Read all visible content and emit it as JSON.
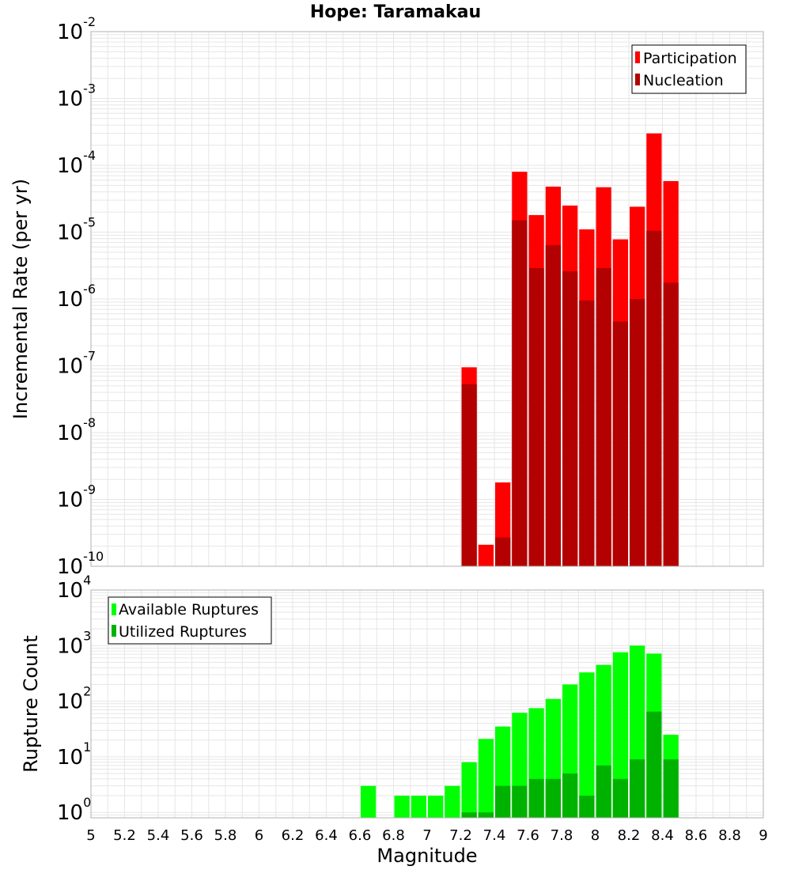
{
  "colors": {
    "participation": "#ff0000",
    "nucleation": "#b30000",
    "available": "#00ff00",
    "utilized": "#00b200",
    "grid": "#e6e6e6",
    "frame": "#b0b0b0"
  },
  "chart_data": [
    {
      "type": "bar",
      "title": "Hope: Taramakau",
      "xlabel": "Magnitude",
      "ylabel": "Incremental Rate (per yr)",
      "yscale": "log",
      "ylim": [
        1e-10,
        0.01
      ],
      "xlim": [
        5,
        9
      ],
      "bin_width": 0.1,
      "grid": true,
      "legend_position": "top-right",
      "ytick_labels": [
        {
          "base": "10",
          "exp": "-10"
        },
        {
          "base": "10",
          "exp": "-9"
        },
        {
          "base": "10",
          "exp": "-8"
        },
        {
          "base": "10",
          "exp": "-7"
        },
        {
          "base": "10",
          "exp": "-6"
        },
        {
          "base": "10",
          "exp": "-5"
        },
        {
          "base": "10",
          "exp": "-4"
        },
        {
          "base": "10",
          "exp": "-3"
        },
        {
          "base": "10",
          "exp": "-2"
        }
      ],
      "x": [
        7.25,
        7.35,
        7.45,
        7.55,
        7.65,
        7.75,
        7.85,
        7.95,
        8.05,
        8.15,
        8.25,
        8.35,
        8.45
      ],
      "series": [
        {
          "name": "Participation",
          "color": "#ff0000",
          "values": [
            9.5e-08,
            2.1e-10,
            1.8e-09,
            8e-05,
            1.8e-05,
            4.8e-05,
            2.5e-05,
            1.1e-05,
            4.7e-05,
            7.8e-06,
            2.4e-05,
            0.0003,
            5.8e-05
          ]
        },
        {
          "name": "Nucleation",
          "color": "#b30000",
          "values": [
            5.3e-08,
            null,
            2.7e-10,
            1.5e-05,
            2.9e-06,
            6.4e-06,
            2.6e-06,
            9.5e-07,
            2.9e-06,
            4.6e-07,
            1e-06,
            1.05e-05,
            1.75e-06
          ]
        }
      ]
    },
    {
      "type": "bar",
      "title": "",
      "xlabel": "Magnitude",
      "ylabel": "Rupture Count",
      "yscale": "log",
      "ylim": [
        0.8,
        10000
      ],
      "xlim": [
        5,
        9
      ],
      "bin_width": 0.1,
      "grid": true,
      "legend_position": "top-left",
      "ytick_labels": [
        {
          "base": "10",
          "exp": "0"
        },
        {
          "base": "10",
          "exp": "1"
        },
        {
          "base": "10",
          "exp": "2"
        },
        {
          "base": "10",
          "exp": "3"
        },
        {
          "base": "10",
          "exp": "4"
        }
      ],
      "xticks": [
        "5",
        "5.2",
        "5.4",
        "5.6",
        "5.8",
        "6",
        "6.2",
        "6.4",
        "6.6",
        "6.8",
        "7",
        "7.2",
        "7.4",
        "7.6",
        "7.8",
        "8",
        "8.2",
        "8.4",
        "8.6",
        "8.8",
        "9"
      ],
      "x": [
        6.65,
        6.85,
        6.95,
        7.05,
        7.15,
        7.25,
        7.35,
        7.45,
        7.55,
        7.65,
        7.75,
        7.85,
        7.95,
        8.05,
        8.15,
        8.25,
        8.35,
        8.45
      ],
      "series": [
        {
          "name": "Available Ruptures",
          "color": "#00ff00",
          "values": [
            3,
            2,
            2,
            2,
            3,
            8,
            21,
            35,
            62,
            75,
            110,
            200,
            330,
            450,
            760,
            1000,
            720,
            25
          ]
        },
        {
          "name": "Utilized Ruptures",
          "color": "#00b200",
          "values": [
            null,
            null,
            null,
            null,
            null,
            1,
            1,
            3,
            3,
            4,
            4,
            5,
            2,
            7,
            4,
            9,
            65,
            9
          ]
        }
      ]
    }
  ]
}
